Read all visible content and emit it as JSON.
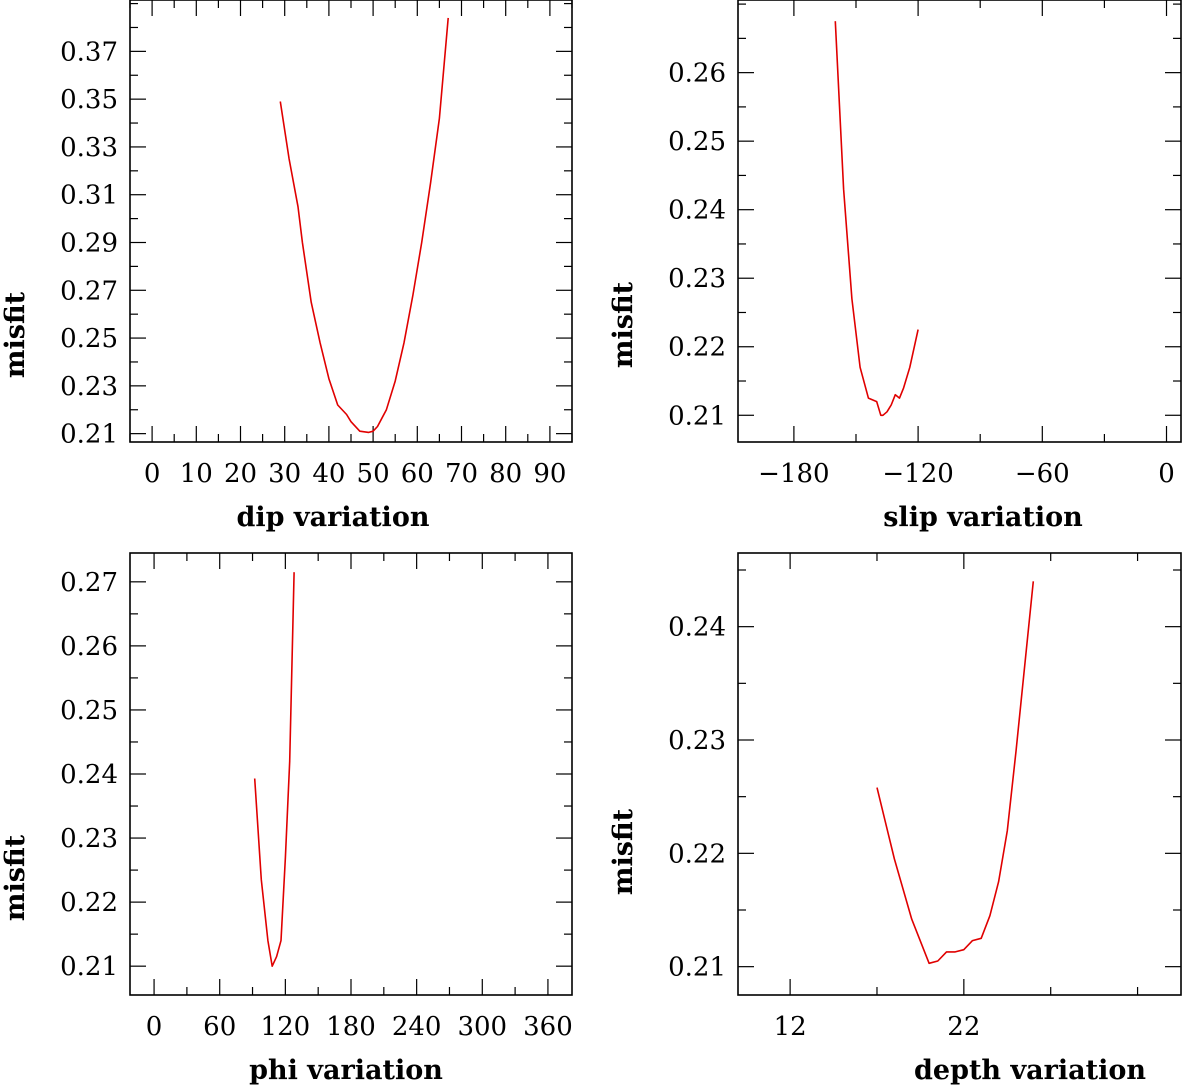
{
  "chart_data": [
    {
      "type": "line",
      "xlabel": "dip      variation",
      "ylabel": "misfit",
      "xlim": [
        -5,
        95
      ],
      "ylim": [
        0.2065,
        0.3915
      ],
      "xticks": [
        0,
        10,
        20,
        30,
        40,
        50,
        60,
        70,
        80,
        90
      ],
      "xtick_labels": [
        "0",
        "10",
        "20",
        "30",
        "40",
        "50",
        "60",
        "70",
        "80",
        "90"
      ],
      "yticks": [
        0.21,
        0.23,
        0.25,
        0.27,
        0.29,
        0.31,
        0.33,
        0.35,
        0.37
      ],
      "ytick_labels": [
        "0.21",
        "0.23",
        "0.25",
        "0.27",
        "0.29",
        "0.31",
        "0.33",
        "0.35",
        "0.37"
      ],
      "series": [
        {
          "color": "#e00000",
          "x": [
            29,
            31,
            33,
            34,
            36,
            38,
            40,
            42,
            44,
            45,
            47,
            49,
            50,
            51,
            53,
            55,
            57,
            59,
            61,
            63,
            65,
            67
          ],
          "y": [
            0.349,
            0.325,
            0.305,
            0.29,
            0.265,
            0.248,
            0.233,
            0.222,
            0.218,
            0.215,
            0.211,
            0.2105,
            0.211,
            0.213,
            0.22,
            0.232,
            0.248,
            0.268,
            0.29,
            0.315,
            0.342,
            0.384
          ]
        }
      ]
    },
    {
      "type": "line",
      "xlabel": "slip    variation",
      "ylabel": "misfit",
      "xlim": [
        -207,
        7
      ],
      "ylim": [
        0.2061,
        0.2706
      ],
      "xticks": [
        -180,
        -120,
        -60,
        0
      ],
      "xtick_labels": [
        "−180",
        "−120",
        "−60",
        "0"
      ],
      "yticks": [
        0.21,
        0.22,
        0.23,
        0.24,
        0.25,
        0.26
      ],
      "ytick_labels": [
        "0.21",
        "0.22",
        "0.23",
        "0.24",
        "0.25",
        "0.26"
      ],
      "series": [
        {
          "color": "#e00000",
          "x": [
            -160,
            -156,
            -152,
            -148,
            -144,
            -140,
            -138,
            -137,
            -135,
            -133,
            -131,
            -129,
            -127,
            -124,
            -120
          ],
          "y": [
            0.2675,
            0.243,
            0.227,
            0.217,
            0.2125,
            0.212,
            0.21,
            0.21,
            0.2105,
            0.2115,
            0.213,
            0.2125,
            0.214,
            0.217,
            0.2225
          ]
        }
      ]
    },
    {
      "type": "line",
      "xlabel": "phi      variation",
      "ylabel": "misfit",
      "xlim": [
        -22,
        382
      ],
      "ylim": [
        0.2055,
        0.2745
      ],
      "xticks": [
        0,
        60,
        120,
        180,
        240,
        300,
        360
      ],
      "xtick_labels": [
        "0",
        "60",
        "120",
        "180",
        "240",
        "300",
        "360"
      ],
      "yticks": [
        0.21,
        0.22,
        0.23,
        0.24,
        0.25,
        0.26,
        0.27
      ],
      "ytick_labels": [
        "0.21",
        "0.22",
        "0.23",
        "0.24",
        "0.25",
        "0.26",
        "0.27"
      ],
      "series": [
        {
          "color": "#e00000",
          "x": [
            92,
            98,
            104,
            108,
            112,
            116,
            120,
            124,
            128
          ],
          "y": [
            0.2393,
            0.2235,
            0.214,
            0.21,
            0.2115,
            0.214,
            0.227,
            0.242,
            0.2715
          ]
        }
      ]
    },
    {
      "type": "line",
      "xlabel": "depth   variation",
      "ylabel": "misfit",
      "xlim": [
        9,
        34.5
      ],
      "ylim": [
        0.2075,
        0.2465
      ],
      "xticks": [
        12,
        22
      ],
      "xtick_labels": [
        "12",
        "22"
      ],
      "yticks": [
        0.21,
        0.22,
        0.23,
        0.24
      ],
      "ytick_labels": [
        "0.21",
        "0.22",
        "0.23",
        "0.24"
      ],
      "series": [
        {
          "color": "#e00000",
          "x": [
            17,
            18,
            19,
            20,
            20.5,
            21,
            21.5,
            22,
            22.5,
            23,
            23.5,
            24,
            24.5,
            25,
            26
          ],
          "y": [
            0.2258,
            0.2195,
            0.2142,
            0.2103,
            0.2105,
            0.2113,
            0.2113,
            0.2115,
            0.2123,
            0.2125,
            0.2145,
            0.2175,
            0.222,
            0.229,
            0.244
          ]
        }
      ]
    }
  ]
}
